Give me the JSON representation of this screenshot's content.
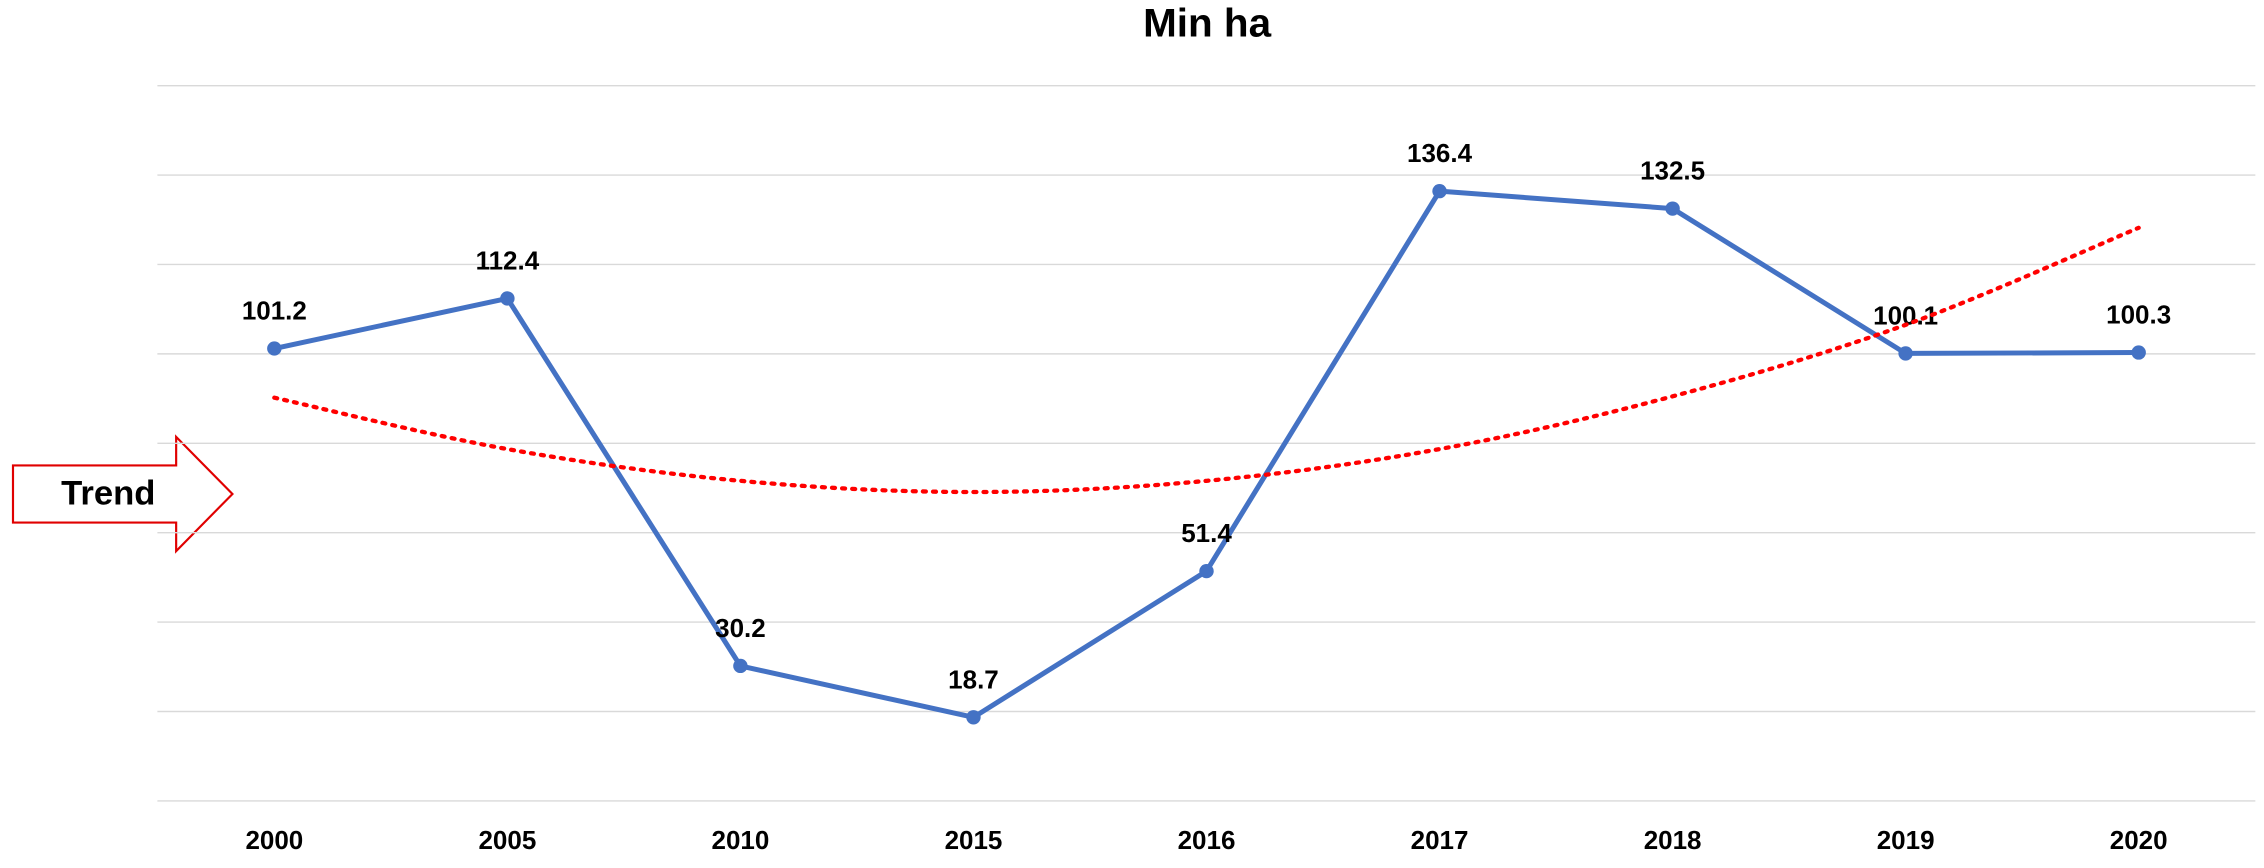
{
  "chart_data": {
    "type": "line",
    "title": "Min ha",
    "categories": [
      "2000",
      "2005",
      "2010",
      "2015",
      "2016",
      "2017",
      "2018",
      "2019",
      "2020"
    ],
    "series": [
      {
        "name": "Min ha",
        "color": "#4472c4",
        "values": [
          101.2,
          112.4,
          30.2,
          18.7,
          51.4,
          136.4,
          132.5,
          100.1,
          100.3
        ]
      },
      {
        "name": "Trend",
        "color": "#ff0000",
        "style": "dotted",
        "values": [
          90.2,
          78.7,
          71.6,
          69.1,
          71.6,
          78.7,
          90.5,
          106.5,
          128.2
        ]
      }
    ],
    "data_labels": true,
    "ylim": [
      0,
      160
    ],
    "yticks": [
      0,
      20,
      40,
      60,
      80,
      100,
      120,
      140,
      160
    ],
    "grid": true
  }
}
